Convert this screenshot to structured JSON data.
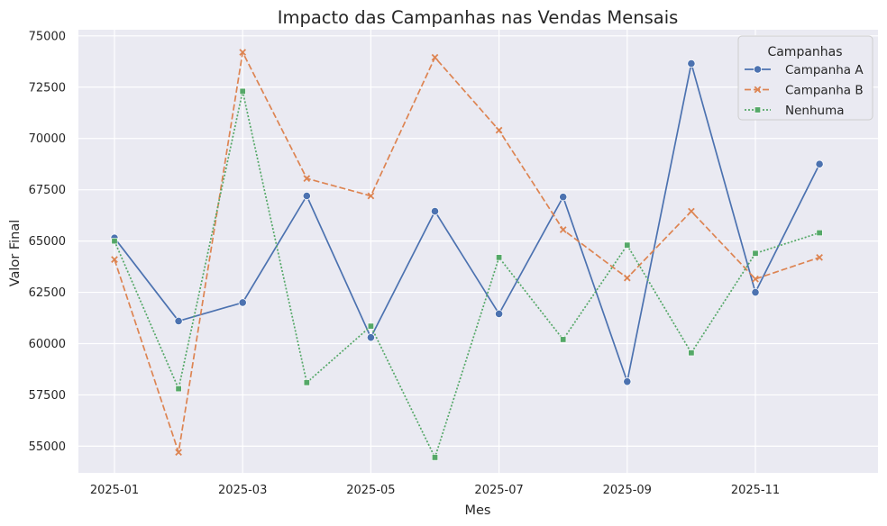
{
  "chart_data": {
    "type": "line",
    "title": "Impacto das Campanhas nas Vendas Mensais",
    "xlabel": "Mes",
    "ylabel": "Valor Final",
    "x": [
      "2025-01",
      "2025-02",
      "2025-03",
      "2025-04",
      "2025-05",
      "2025-06",
      "2025-07",
      "2025-08",
      "2025-09",
      "2025-10",
      "2025-11",
      "2025-12"
    ],
    "x_ticks": [
      "2025-01",
      "2025-03",
      "2025-05",
      "2025-07",
      "2025-09",
      "2025-11"
    ],
    "y_ticks": [
      55000,
      57500,
      60000,
      62500,
      65000,
      67500,
      70000,
      72500,
      75000
    ],
    "ylim": [
      53700,
      75300
    ],
    "grid": true,
    "legend": {
      "title": "Campanhas",
      "placement": "top-right"
    },
    "series": [
      {
        "name": "Campanha A",
        "color": "#4c72b0",
        "style": "solid",
        "marker": "circle",
        "values": [
          65150,
          61100,
          62000,
          67200,
          60300,
          66450,
          61450,
          67150,
          58150,
          73650,
          62500,
          68750
        ]
      },
      {
        "name": "Campanha B",
        "color": "#dd8452",
        "style": "dashed",
        "marker": "x",
        "values": [
          64100,
          54700,
          74200,
          68050,
          67200,
          73950,
          70400,
          65550,
          63200,
          66450,
          63150,
          64200
        ]
      },
      {
        "name": "Nenhuma",
        "color": "#55a868",
        "style": "dotted",
        "marker": "square",
        "values": [
          65000,
          57800,
          72300,
          58100,
          60850,
          54450,
          64200,
          60200,
          64800,
          59550,
          64400,
          65400
        ]
      }
    ]
  }
}
